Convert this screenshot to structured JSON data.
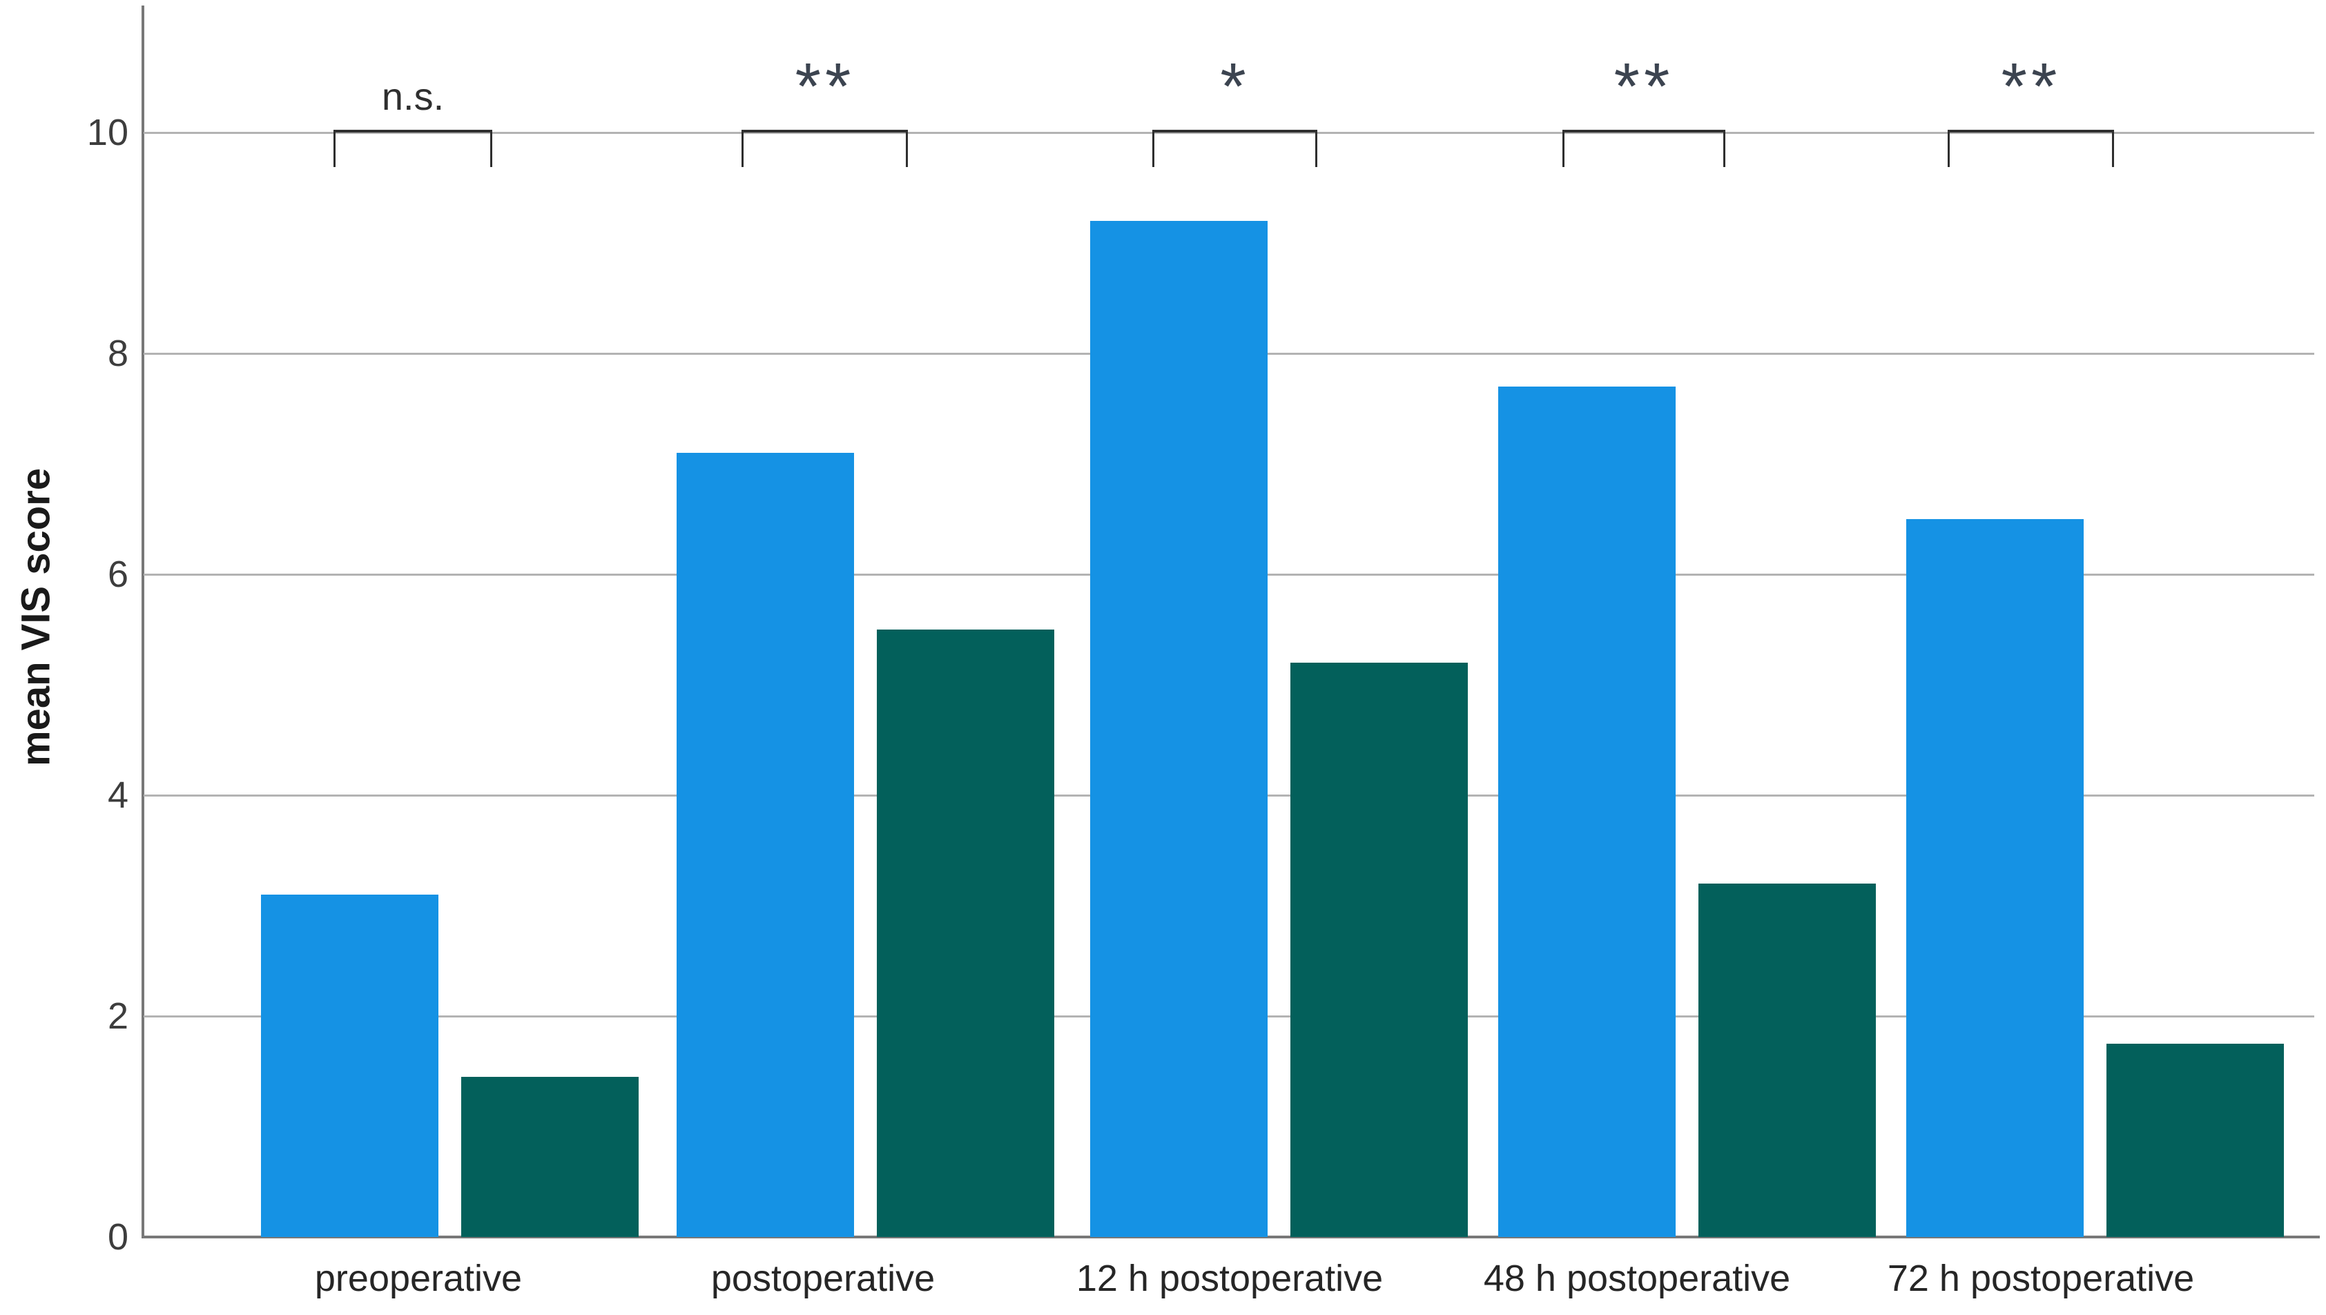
{
  "figure": {
    "kind": "grouped bar chart",
    "title": ""
  },
  "chart_data": {
    "type": "bar",
    "title": "",
    "xlabel": "",
    "ylabel": "mean VIS score",
    "ylim": [
      0,
      11
    ],
    "yticks": [
      0,
      2,
      4,
      6,
      8,
      10
    ],
    "grid": true,
    "legend_position": "none",
    "categories": [
      "preoperative",
      "postoperative",
      "12 h postoperative",
      "48 h postoperative",
      "72 h postoperative"
    ],
    "series": [
      {
        "name": "series-blue",
        "color": "#1592E4",
        "values": [
          3.1,
          7.1,
          9.2,
          7.7,
          6.5
        ]
      },
      {
        "name": "series-teal",
        "color": "#03605B",
        "values": [
          1.45,
          5.5,
          5.2,
          3.2,
          1.75
        ]
      }
    ],
    "significance_labels": [
      "n.s.",
      "**",
      "*",
      "**",
      "**"
    ]
  },
  "colors": {
    "bar_blue": "#1592E4",
    "bar_teal": "#03605B",
    "gridline": "#b3b3b3",
    "axis": "#787878",
    "bracket": "#2f2f2f",
    "text": "#262626"
  }
}
